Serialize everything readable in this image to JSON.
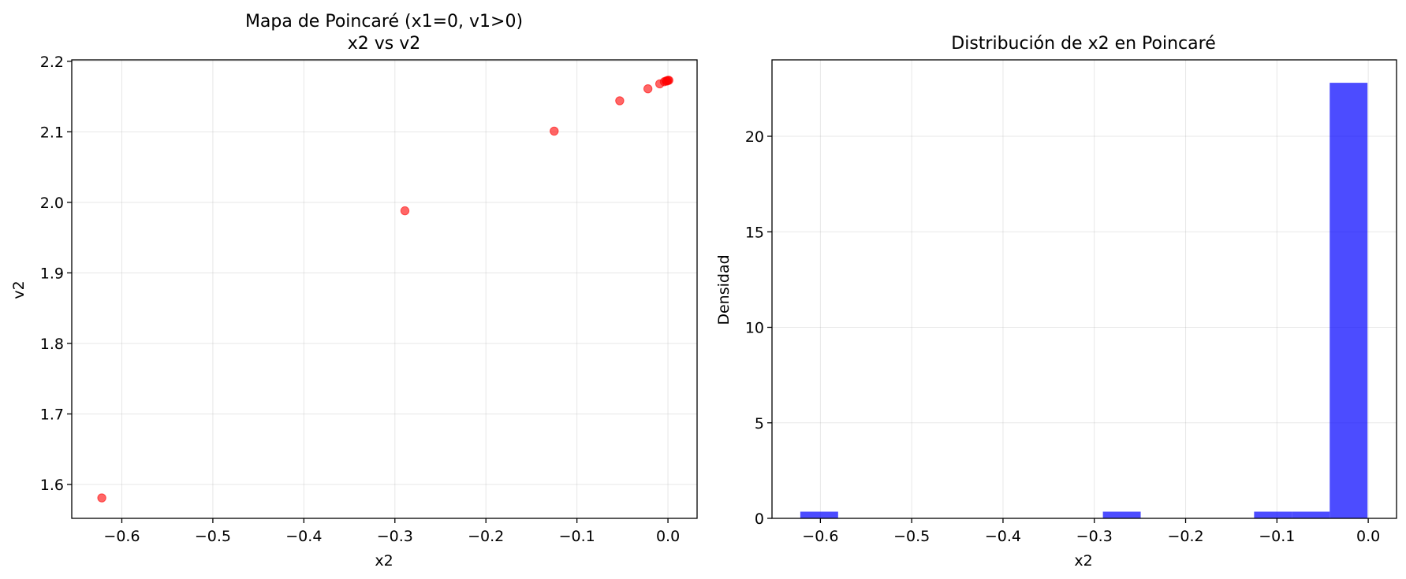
{
  "chart_data": [
    {
      "type": "scatter",
      "title": "Mapa de Poincaré (x1=0, v1>0)",
      "subtitle": "x2 vs v2",
      "xlabel": "x2",
      "ylabel": "v2",
      "xlim": [
        -0.655,
        0.032
      ],
      "ylim": [
        1.552,
        2.202
      ],
      "xticks": [
        -0.6,
        -0.5,
        -0.4,
        -0.3,
        -0.2,
        -0.1,
        0.0
      ],
      "xtick_labels": [
        "−0.6",
        "−0.5",
        "−0.4",
        "−0.3",
        "−0.2",
        "−0.1",
        "0.0"
      ],
      "yticks": [
        1.6,
        1.7,
        1.8,
        1.9,
        2.0,
        2.1,
        2.2
      ],
      "ytick_labels": [
        "1.6",
        "1.7",
        "1.8",
        "1.9",
        "2.0",
        "2.1",
        "2.2"
      ],
      "grid": true,
      "color": "#ff0000",
      "points": [
        {
          "x": -0.622,
          "y": 1.581
        },
        {
          "x": -0.289,
          "y": 1.988
        },
        {
          "x": -0.125,
          "y": 2.101
        },
        {
          "x": -0.053,
          "y": 2.144
        },
        {
          "x": -0.022,
          "y": 2.161
        },
        {
          "x": -0.009,
          "y": 2.168
        },
        {
          "x": -0.004,
          "y": 2.171
        },
        {
          "x": -0.002,
          "y": 2.172
        },
        {
          "x": -0.001,
          "y": 2.172
        },
        {
          "x": 0.0,
          "y": 2.173
        },
        {
          "x": 0.001,
          "y": 2.173
        }
      ]
    },
    {
      "type": "bar",
      "title": "Distribución de x2 en Poincaré",
      "xlabel": "x2",
      "ylabel": "Densidad",
      "xlim": [
        -0.653,
        0.031
      ],
      "ylim": [
        0,
        24
      ],
      "xticks": [
        -0.6,
        -0.5,
        -0.4,
        -0.3,
        -0.2,
        -0.1,
        0.0
      ],
      "xtick_labels": [
        "−0.6",
        "−0.5",
        "−0.4",
        "−0.3",
        "−0.2",
        "−0.1",
        "0.0"
      ],
      "yticks": [
        0,
        5,
        10,
        15,
        20
      ],
      "ytick_labels": [
        "0",
        "5",
        "10",
        "15",
        "20"
      ],
      "grid": true,
      "color": "#0000ff",
      "bins": [
        {
          "x0": -0.622,
          "x1": -0.5806,
          "value": 0.35
        },
        {
          "x0": -0.2906,
          "x1": -0.2492,
          "value": 0.35
        },
        {
          "x0": -0.125,
          "x1": -0.0836,
          "value": 0.35
        },
        {
          "x0": -0.0836,
          "x1": -0.0422,
          "value": 0.35
        },
        {
          "x0": -0.0422,
          "x1": -0.0008,
          "value": 22.8
        }
      ]
    }
  ]
}
